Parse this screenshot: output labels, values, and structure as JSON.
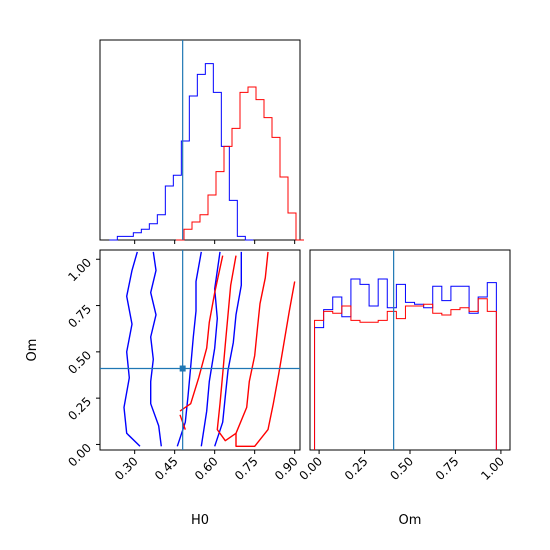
{
  "chart_data": {
    "type": "corner",
    "parameters": [
      "H0",
      "Om"
    ],
    "truth": {
      "H0": 0.48,
      "Om": 0.41
    },
    "colors": {
      "blue": "#0000ff",
      "red": "#ff0000",
      "truth": "#1f77b4"
    },
    "panels": [
      {
        "id": "hist_H0",
        "type": "histogram",
        "param": "H0",
        "xlim": [
          0.17,
          0.92
        ],
        "xticks": [
          0.3,
          0.45,
          0.6,
          0.75,
          0.9
        ],
        "tick_labels_shown": false,
        "series": [
          {
            "color": "blue",
            "bins": [
              [
                0.22,
                0.0
              ],
              [
                0.25,
                0.02
              ],
              [
                0.28,
                0.02
              ],
              [
                0.31,
                0.04
              ],
              [
                0.34,
                0.06
              ],
              [
                0.37,
                0.09
              ],
              [
                0.4,
                0.14
              ],
              [
                0.43,
                0.3
              ],
              [
                0.46,
                0.36
              ],
              [
                0.49,
                0.55
              ],
              [
                0.52,
                0.8
              ],
              [
                0.55,
                0.92
              ],
              [
                0.58,
                0.98
              ],
              [
                0.61,
                0.82
              ],
              [
                0.64,
                0.52
              ],
              [
                0.67,
                0.22
              ],
              [
                0.7,
                0.02
              ],
              [
                0.73,
                0.0
              ]
            ]
          },
          {
            "color": "red",
            "bins": [
              [
                0.47,
                0.0
              ],
              [
                0.5,
                0.06
              ],
              [
                0.53,
                0.1
              ],
              [
                0.56,
                0.14
              ],
              [
                0.59,
                0.25
              ],
              [
                0.62,
                0.38
              ],
              [
                0.65,
                0.52
              ],
              [
                0.68,
                0.62
              ],
              [
                0.71,
                0.82
              ],
              [
                0.74,
                0.85
              ],
              [
                0.77,
                0.78
              ],
              [
                0.8,
                0.68
              ],
              [
                0.83,
                0.57
              ],
              [
                0.86,
                0.35
              ],
              [
                0.89,
                0.15
              ],
              [
                0.92,
                0.0
              ]
            ]
          }
        ]
      },
      {
        "id": "contour_H0_Om",
        "type": "contour",
        "xparam": "H0",
        "yparam": "Om",
        "xlim": [
          0.17,
          0.92
        ],
        "ylim": [
          -0.03,
          1.05
        ],
        "xticks": [
          0.3,
          0.45,
          0.6,
          0.75,
          0.9
        ],
        "xtick_labels": [
          "0.30",
          "0.45",
          "0.60",
          "0.75",
          "0.90"
        ],
        "yticks": [
          0.0,
          0.25,
          0.5,
          0.75,
          1.0
        ],
        "ytick_labels": [
          "0.00",
          "0.25",
          "0.50",
          "0.75",
          "1.00"
        ],
        "xlabel": "H0",
        "ylabel": "Om",
        "series": [
          {
            "color": "blue",
            "contours": [
              [
                [
                  0.4,
                  -0.01
                ],
                [
                  0.39,
                  0.1
                ],
                [
                  0.36,
                  0.22
                ],
                [
                  0.36,
                  0.34
                ],
                [
                  0.37,
                  0.46
                ],
                [
                  0.36,
                  0.58
                ],
                [
                  0.38,
                  0.7
                ],
                [
                  0.36,
                  0.82
                ],
                [
                  0.38,
                  0.94
                ],
                [
                  0.37,
                  1.04
                ]
              ],
              [
                [
                  0.6,
                  -0.01
                ],
                [
                  0.63,
                  0.12
                ],
                [
                  0.64,
                  0.26
                ],
                [
                  0.65,
                  0.4
                ],
                [
                  0.67,
                  0.55
                ],
                [
                  0.68,
                  0.7
                ],
                [
                  0.7,
                  0.86
                ],
                [
                  0.7,
                  1.04
                ]
              ],
              [
                [
                  0.55,
                  -0.01
                ],
                [
                  0.57,
                  0.18
                ],
                [
                  0.58,
                  0.34
                ],
                [
                  0.6,
                  0.52
                ],
                [
                  0.61,
                  0.68
                ],
                [
                  0.6,
                  0.84
                ],
                [
                  0.62,
                  1.04
                ]
              ],
              [
                [
                  0.46,
                  -0.01
                ],
                [
                  0.49,
                  0.12
                ],
                [
                  0.5,
                  0.26
                ],
                [
                  0.51,
                  0.42
                ],
                [
                  0.52,
                  0.58
                ],
                [
                  0.53,
                  0.72
                ],
                [
                  0.53,
                  0.88
                ],
                [
                  0.55,
                  1.04
                ]
              ],
              [
                [
                  0.32,
                  -0.01
                ],
                [
                  0.27,
                  0.06
                ],
                [
                  0.26,
                  0.2
                ],
                [
                  0.28,
                  0.36
                ],
                [
                  0.27,
                  0.5
                ],
                [
                  0.29,
                  0.65
                ],
                [
                  0.27,
                  0.8
                ],
                [
                  0.29,
                  0.94
                ],
                [
                  0.31,
                  1.04
                ]
              ]
            ]
          },
          {
            "color": "red",
            "contours": [
              [
                [
                  0.8,
                  1.04
                ],
                [
                  0.79,
                  0.9
                ],
                [
                  0.77,
                  0.76
                ],
                [
                  0.76,
                  0.62
                ],
                [
                  0.75,
                  0.48
                ],
                [
                  0.73,
                  0.34
                ],
                [
                  0.72,
                  0.2
                ],
                [
                  0.68,
                  0.06
                ],
                [
                  0.64,
                  0.02
                ],
                [
                  0.61,
                  0.08
                ],
                [
                  0.62,
                  0.22
                ],
                [
                  0.63,
                  0.38
                ],
                [
                  0.64,
                  0.54
                ],
                [
                  0.65,
                  0.7
                ],
                [
                  0.66,
                  0.86
                ],
                [
                  0.68,
                  1.02
                ]
              ],
              [
                [
                  0.9,
                  0.88
                ],
                [
                  0.88,
                  0.72
                ],
                [
                  0.86,
                  0.55
                ],
                [
                  0.84,
                  0.38
                ],
                [
                  0.82,
                  0.22
                ],
                [
                  0.8,
                  0.08
                ],
                [
                  0.75,
                  -0.01
                ],
                [
                  0.68,
                  -0.01
                ],
                [
                  0.68,
                  0.06
                ]
              ],
              [
                [
                  0.47,
                  0.18
                ],
                [
                  0.51,
                  0.22
                ],
                [
                  0.54,
                  0.36
                ],
                [
                  0.57,
                  0.52
                ],
                [
                  0.58,
                  0.66
                ],
                [
                  0.6,
                  0.82
                ],
                [
                  0.63,
                  1.02
                ]
              ],
              [
                [
                  0.49,
                  0.08
                ],
                [
                  0.47,
                  0.16
                ]
              ]
            ]
          }
        ]
      },
      {
        "id": "hist_Om",
        "type": "histogram",
        "param": "Om",
        "xlim": [
          -0.05,
          1.05
        ],
        "xticks": [
          0.0,
          0.25,
          0.5,
          0.75,
          1.0
        ],
        "xtick_labels": [
          "0.00",
          "0.25",
          "0.50",
          "0.75",
          "1.00"
        ],
        "xlabel": "Om",
        "series": [
          {
            "color": "blue",
            "bins": [
              [
                0.0,
                0.68
              ],
              [
                0.05,
                0.78
              ],
              [
                0.1,
                0.85
              ],
              [
                0.15,
                0.74
              ],
              [
                0.2,
                0.95
              ],
              [
                0.25,
                0.92
              ],
              [
                0.3,
                0.8
              ],
              [
                0.35,
                0.95
              ],
              [
                0.4,
                0.79
              ],
              [
                0.45,
                0.92
              ],
              [
                0.5,
                0.82
              ],
              [
                0.55,
                0.81
              ],
              [
                0.6,
                0.79
              ],
              [
                0.65,
                0.91
              ],
              [
                0.7,
                0.83
              ],
              [
                0.75,
                0.91
              ],
              [
                0.8,
                0.91
              ],
              [
                0.85,
                0.76
              ],
              [
                0.9,
                0.85
              ],
              [
                0.95,
                0.93
              ]
            ]
          },
          {
            "color": "red",
            "bins": [
              [
                0.0,
                0.72
              ],
              [
                0.05,
                0.77
              ],
              [
                0.1,
                0.76
              ],
              [
                0.15,
                0.8
              ],
              [
                0.2,
                0.72
              ],
              [
                0.25,
                0.71
              ],
              [
                0.3,
                0.71
              ],
              [
                0.35,
                0.72
              ],
              [
                0.4,
                0.77
              ],
              [
                0.45,
                0.73
              ],
              [
                0.5,
                0.8
              ],
              [
                0.55,
                0.8
              ],
              [
                0.6,
                0.81
              ],
              [
                0.65,
                0.76
              ],
              [
                0.7,
                0.75
              ],
              [
                0.75,
                0.78
              ],
              [
                0.8,
                0.79
              ],
              [
                0.85,
                0.77
              ],
              [
                0.9,
                0.84
              ],
              [
                0.95,
                0.77
              ]
            ]
          }
        ]
      }
    ]
  }
}
